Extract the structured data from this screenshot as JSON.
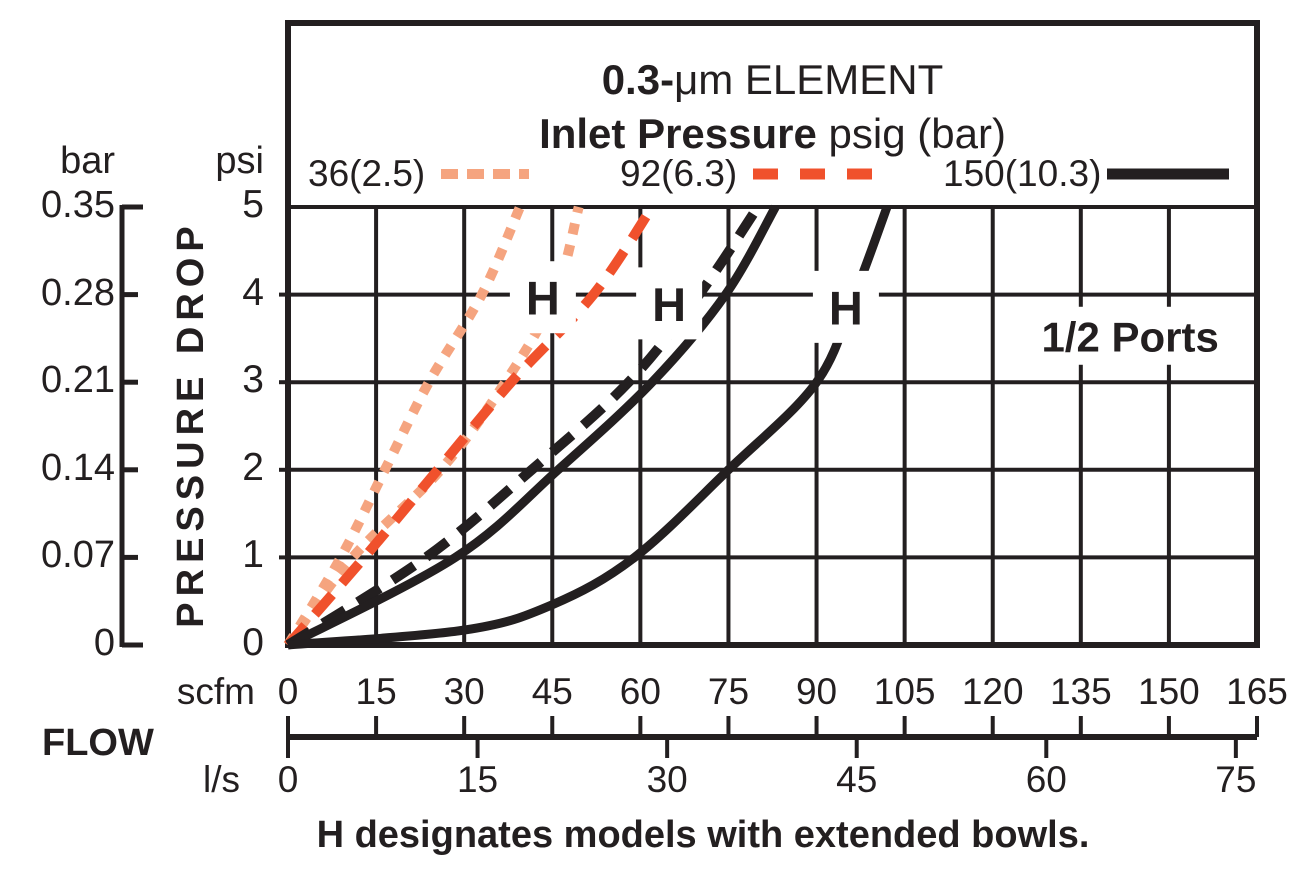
{
  "title": {
    "line1_bold": "0.3-",
    "line1_rest": "μm ELEMENT",
    "line2_bold": "Inlet Pressure",
    "line2_rest": " psig (bar)"
  },
  "legend": {
    "items": [
      {
        "label": "36(2.5)",
        "style": "dotted",
        "color": "#F5A47F"
      },
      {
        "label": "92(6.3)",
        "style": "dashed",
        "color": "#F0512C"
      },
      {
        "label": "150(10.3)",
        "style": "solid",
        "color": "#231F20"
      }
    ]
  },
  "y_axis": {
    "bar_header": "bar",
    "psi_header": "psi",
    "axis_label": "PRESSURE DROP",
    "psi_values": [
      5,
      4,
      3,
      2,
      1,
      0
    ],
    "bar_labels": [
      "0.35",
      "0.28",
      "0.21",
      "0.14",
      "0.07",
      "0"
    ],
    "psi_labels": [
      "5",
      "4",
      "3",
      "2",
      "1",
      "0"
    ]
  },
  "x_axis": {
    "flow_label": "FLOW",
    "scfm_label": "scfm",
    "ls_label": "l/s",
    "scfm_ticks": [
      0,
      15,
      30,
      45,
      60,
      75,
      90,
      105,
      120,
      135,
      150,
      165
    ],
    "ls_ticks": [
      0,
      15,
      30,
      45,
      60,
      75
    ],
    "ls_to_scfm": 2.152
  },
  "annotations": {
    "ports": {
      "text": "1/2 Ports",
      "x_scfm": 143.4,
      "y_psi": 3.53
    },
    "h_label": "H",
    "caption": "H designates models with extended bowls."
  },
  "chart_data": {
    "type": "line",
    "title": "0.3-μm ELEMENT",
    "subtitle": "Inlet Pressure psig (bar)",
    "xlabel": "FLOW scfm (l/s)",
    "ylabel": "PRESSURE DROP psi (bar)",
    "x_range_scfm": [
      0,
      165
    ],
    "y_range_psi": [
      0,
      5
    ],
    "bar_per_psi": 0.07,
    "grid": true,
    "grid_color": "#231F20",
    "legend_position": "top",
    "series": [
      {
        "name": "36 psig (2.5 bar) standard",
        "pressure_psig": 36,
        "pressure_bar": 2.5,
        "style": "dotted",
        "color": "#F5A47F",
        "points_scfm_psi": [
          [
            0,
            0
          ],
          [
            9,
            1
          ],
          [
            16.5,
            2
          ],
          [
            24,
            3
          ],
          [
            33,
            4
          ],
          [
            39.5,
            5
          ]
        ]
      },
      {
        "name": "36 psig (2.5 bar) H extended bowl",
        "pressure_psig": 36,
        "pressure_bar": 2.5,
        "style": "dotted",
        "color": "#F5A47F",
        "points_scfm_psi": [
          [
            0,
            0
          ],
          [
            11,
            1
          ],
          [
            26,
            2
          ],
          [
            37,
            3
          ],
          [
            45.5,
            4
          ],
          [
            49.5,
            5
          ]
        ]
      },
      {
        "name": "92 psig (6.3 bar) standard",
        "pressure_psig": 92,
        "pressure_bar": 6.3,
        "style": "dashed",
        "color": "#F0512C",
        "points_scfm_psi": [
          [
            0,
            0
          ],
          [
            13,
            1
          ],
          [
            25.5,
            2
          ],
          [
            38,
            3
          ],
          [
            52,
            4
          ],
          [
            62,
            5
          ]
        ]
      },
      {
        "name": "92 psig (6.3 bar) H extended bowl",
        "pressure_psig": 92,
        "pressure_bar": 6.3,
        "style": "dashed",
        "color": "#231F20",
        "points_scfm_psi": [
          [
            0,
            0
          ],
          [
            23.5,
            1
          ],
          [
            41.5,
            2
          ],
          [
            58,
            3
          ],
          [
            70,
            4
          ],
          [
            80,
            5
          ]
        ]
      },
      {
        "name": "150 psig (10.3 bar) standard",
        "pressure_psig": 150,
        "pressure_bar": 10.3,
        "style": "solid",
        "color": "#231F20",
        "points_scfm_psi": [
          [
            0,
            0
          ],
          [
            28.5,
            1
          ],
          [
            46,
            2
          ],
          [
            62,
            3
          ],
          [
            74.5,
            4
          ],
          [
            83,
            5
          ]
        ]
      },
      {
        "name": "150 psig (10.3 bar) H extended bowl",
        "pressure_psig": 150,
        "pressure_bar": 10.3,
        "style": "solid",
        "color": "#231F20",
        "points_scfm_psi": [
          [
            0,
            0
          ],
          [
            30,
            0.17
          ],
          [
            45,
            0.46
          ],
          [
            59,
            1
          ],
          [
            75,
            2
          ],
          [
            90,
            3
          ],
          [
            96.5,
            4
          ],
          [
            102,
            5
          ]
        ]
      }
    ],
    "h_markers": [
      {
        "x_scfm": 43.4,
        "y_psi": 3.97
      },
      {
        "x_scfm": 64.9,
        "y_psi": 3.9
      },
      {
        "x_scfm": 95.0,
        "y_psi": 3.86
      }
    ]
  }
}
